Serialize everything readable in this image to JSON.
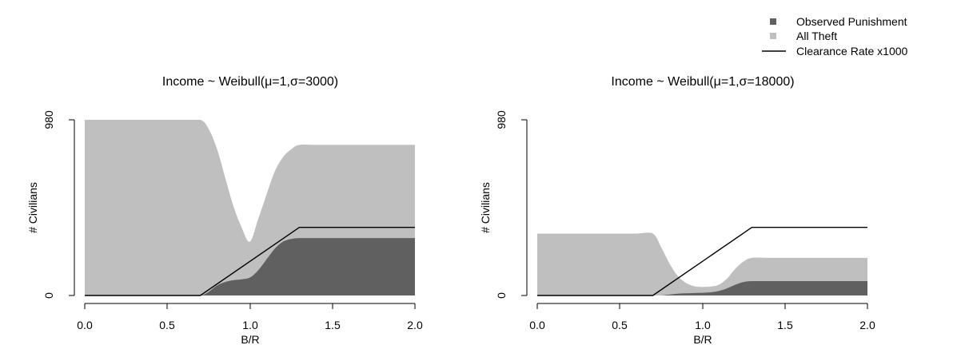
{
  "legend": {
    "position": "top-right",
    "items": [
      {
        "label": "Observed Punishment",
        "color": "#606060",
        "kind": "square"
      },
      {
        "label": "All Theft",
        "color": "#bfbfbf",
        "kind": "square"
      },
      {
        "label": "Clearance Rate x1000",
        "color": "#000000",
        "kind": "line"
      }
    ]
  },
  "chart_data": [
    {
      "type": "area",
      "title": "Income ~ Weibull(μ=1,σ=3000)",
      "xlabel": "B/R",
      "ylabel": "# Civilians",
      "xlim": [
        0,
        2
      ],
      "ylim": [
        0,
        980
      ],
      "xticks": [
        "0.0",
        "0.5",
        "1.0",
        "1.5",
        "2.0"
      ],
      "yticks": [
        "0",
        "980"
      ],
      "grid": false,
      "x": [
        0,
        0.1,
        0.2,
        0.3,
        0.4,
        0.5,
        0.6,
        0.7,
        0.75,
        0.8,
        0.85,
        0.9,
        0.95,
        1.0,
        1.05,
        1.1,
        1.15,
        1.2,
        1.25,
        1.3,
        1.4,
        1.5,
        1.6,
        1.7,
        1.8,
        1.9,
        2.0
      ],
      "series": [
        {
          "name": "All Theft",
          "values": [
            980,
            980,
            980,
            980,
            980,
            980,
            980,
            980,
            930,
            820,
            660,
            500,
            380,
            300,
            425,
            560,
            690,
            770,
            815,
            840,
            840,
            840,
            840,
            840,
            840,
            840,
            840
          ]
        },
        {
          "name": "Observed Punishment",
          "values": [
            0,
            0,
            0,
            0,
            0,
            0,
            0,
            0,
            20,
            55,
            75,
            85,
            90,
            100,
            140,
            200,
            260,
            300,
            315,
            320,
            320,
            320,
            320,
            320,
            320,
            320,
            320
          ]
        },
        {
          "name": "Clearance Rate x1000",
          "x": [
            0,
            0.7,
            1.3,
            2.0
          ],
          "values": [
            0,
            0,
            380,
            380
          ]
        }
      ]
    },
    {
      "type": "area",
      "title": "Income ~ Weibull(μ=1,σ=18000)",
      "xlabel": "B/R",
      "ylabel": "# Civilians",
      "xlim": [
        0,
        2
      ],
      "ylim": [
        0,
        980
      ],
      "xticks": [
        "0.0",
        "0.5",
        "1.0",
        "1.5",
        "2.0"
      ],
      "yticks": [
        "0",
        "980"
      ],
      "grid": false,
      "x": [
        0,
        0.1,
        0.2,
        0.3,
        0.4,
        0.5,
        0.6,
        0.7,
        0.75,
        0.8,
        0.85,
        0.9,
        0.95,
        1.0,
        1.05,
        1.1,
        1.15,
        1.2,
        1.25,
        1.3,
        1.4,
        1.5,
        1.6,
        1.7,
        1.8,
        1.9,
        2.0
      ],
      "series": [
        {
          "name": "All Theft",
          "values": [
            345,
            345,
            345,
            345,
            345,
            345,
            345,
            345,
            270,
            180,
            110,
            70,
            52,
            48,
            50,
            60,
            95,
            150,
            190,
            210,
            210,
            210,
            210,
            210,
            210,
            210,
            210
          ]
        },
        {
          "name": "Observed Punishment",
          "values": [
            0,
            0,
            0,
            0,
            0,
            0,
            0,
            0,
            0,
            5,
            10,
            12,
            14,
            15,
            18,
            25,
            40,
            60,
            75,
            80,
            80,
            80,
            80,
            80,
            80,
            80,
            80
          ]
        },
        {
          "name": "Clearance Rate x1000",
          "x": [
            0,
            0.7,
            1.3,
            2.0
          ],
          "values": [
            0,
            0,
            380,
            380
          ]
        }
      ]
    }
  ]
}
